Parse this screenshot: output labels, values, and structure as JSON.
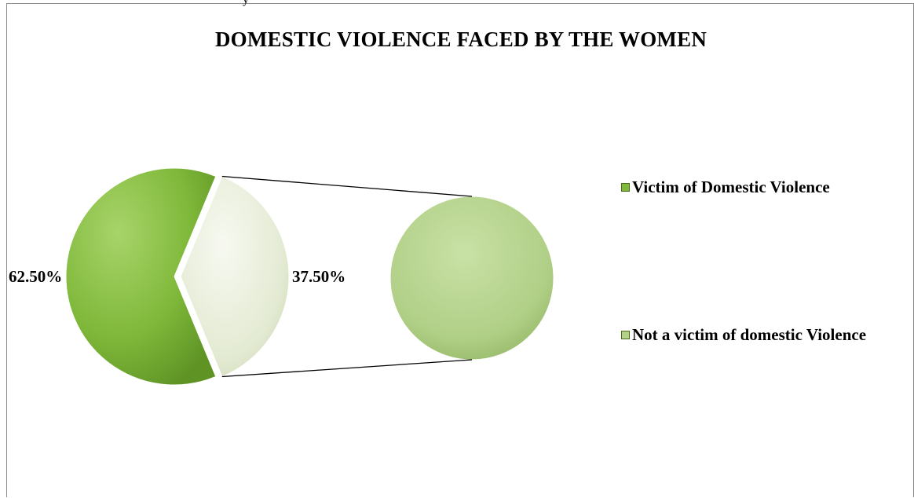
{
  "top_fragment": "y",
  "chart_data": {
    "type": "pie",
    "subtype": "pie-of-pie",
    "title": "DOMESTIC VIOLENCE FACED BY THE WOMEN",
    "categories": [
      "Victim of Domestic Violence",
      "Not a victim of domestic Violence"
    ],
    "values": [
      62.5,
      37.5
    ],
    "data_labels": [
      "62.50%",
      "37.50%"
    ],
    "legend_position": "right",
    "colors": {
      "victim": "#7fb83a",
      "victim_dark": "#5f9425",
      "not_victim": "#e8eedb",
      "secondary_pie": "#b3d18a",
      "secondary_pie_dark": "#8fb460",
      "connector": "#000000"
    }
  }
}
